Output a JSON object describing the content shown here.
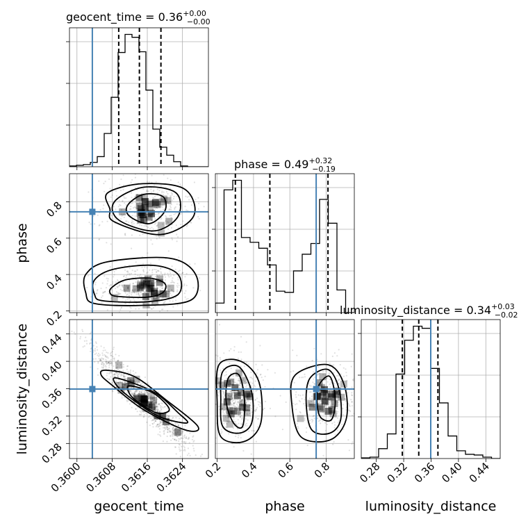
{
  "chart_data": {
    "type": "corner",
    "parameters": [
      "geocent_time",
      "phase",
      "luminosity_distance"
    ],
    "truth_color": "#4682b4",
    "grid": true,
    "ranges": {
      "geocent_time": [
        0.35983,
        0.36299
      ],
      "phase": [
        0.19,
        0.955
      ],
      "luminosity_distance": [
        0.258,
        0.461
      ]
    },
    "titles": [
      {
        "param": "geocent_time",
        "label": "geocent_time = 0.36",
        "plus": "+0.00",
        "minus": "−0.00"
      },
      {
        "param": "phase",
        "label": "phase = 0.49",
        "plus": "+0.32",
        "minus": "−0.19"
      },
      {
        "param": "luminosity_distance",
        "label": "luminosity_distance = 0.34",
        "plus": "+0.03",
        "minus": "−0.02"
      }
    ],
    "truths": {
      "geocent_time": 0.36035,
      "phase": 0.745,
      "luminosity_distance": 0.3595
    },
    "quantiles": {
      "geocent_time": [
        0.36095,
        0.36142,
        0.36191
      ],
      "phase": [
        0.3,
        0.49,
        0.81
      ],
      "luminosity_distance": [
        0.318,
        0.342,
        0.37
      ]
    },
    "ticks": {
      "geocent_time": [
        "0.3600",
        "0.3608",
        "0.3616",
        "0.3624"
      ],
      "geocent_time_values": [
        0.36,
        0.3608,
        0.3616,
        0.3624
      ],
      "phase_x": [
        "0.2",
        "0.4",
        "0.6",
        "0.8"
      ],
      "phase_x_values": [
        0.2,
        0.4,
        0.6,
        0.8
      ],
      "phase_y": [
        "0.2",
        "0.4",
        "0.6",
        "0.8"
      ],
      "phase_y_values": [
        0.2,
        0.4,
        0.6,
        0.8
      ],
      "luminosity_distance": [
        "0.28",
        "0.32",
        "0.36",
        "0.40",
        "0.44"
      ],
      "luminosity_distance_values": [
        0.28,
        0.32,
        0.36,
        0.4,
        0.44
      ]
    },
    "hist_geocent_time": {
      "edges_start": 0.35983,
      "edges_end": 0.36299,
      "counts": [
        1,
        2,
        3,
        6,
        14,
        46,
        96,
        158,
        183,
        179,
        159,
        106,
        52,
        27,
        16,
        7,
        1,
        0,
        0,
        0
      ]
    },
    "hist_phase": {
      "edges_start": 0.19,
      "edges_end": 0.955,
      "counts": [
        8,
        103,
        111,
        63,
        59,
        54,
        40,
        18,
        17,
        35,
        49,
        58,
        95,
        75,
        19,
        0
      ]
    },
    "hist_luminosity_distance": {
      "edges_start": 0.258,
      "edges_end": 0.461,
      "counts": [
        1,
        2,
        14,
        35,
        120,
        168,
        188,
        185,
        128,
        79,
        32,
        11,
        6,
        5,
        2,
        0
      ]
    },
    "scatter_phase_vs_geocent_time": {
      "modes": [
        {
          "x": 0.36155,
          "y": 0.325,
          "sx": 0.00035,
          "sy": 0.045,
          "weight": 0.55
        },
        {
          "x": 0.3616,
          "y": 0.765,
          "sx": 0.00035,
          "sy": 0.06,
          "weight": 0.45
        }
      ],
      "contours": [
        {
          "x": [
            0.3609,
            0.3616,
            0.36195,
            0.362,
            0.36165,
            0.3611,
            0.3608,
            0.36075
          ],
          "y": [
            0.28,
            0.275,
            0.3,
            0.35,
            0.38,
            0.37,
            0.33,
            0.3
          ]
        },
        {
          "x": [
            0.3606,
            0.3616,
            0.3623,
            0.3623,
            0.36175,
            0.36085,
            0.3604,
            0.3604
          ],
          "y": [
            0.255,
            0.25,
            0.29,
            0.4,
            0.45,
            0.43,
            0.37,
            0.29
          ]
        },
        {
          "x": [
            0.3604,
            0.3615,
            0.3626,
            0.3627,
            0.3621,
            0.3607,
            0.3602,
            0.3602
          ],
          "y": [
            0.24,
            0.23,
            0.26,
            0.4,
            0.49,
            0.47,
            0.4,
            0.3
          ]
        },
        {
          "x": [
            0.3612,
            0.36165,
            0.362,
            0.36195,
            0.3615,
            0.36115
          ],
          "y": [
            0.72,
            0.68,
            0.75,
            0.83,
            0.84,
            0.78
          ]
        },
        {
          "x": [
            0.36095,
            0.36175,
            0.3623,
            0.36225,
            0.3615,
            0.36085
          ],
          "y": [
            0.7,
            0.64,
            0.72,
            0.85,
            0.88,
            0.8
          ]
        },
        {
          "x": [
            0.36085,
            0.3619,
            0.36265,
            0.36245,
            0.3615,
            0.3607,
            0.36075
          ],
          "y": [
            0.69,
            0.62,
            0.72,
            0.87,
            0.9,
            0.85,
            0.76
          ]
        }
      ]
    },
    "scatter_luminosity_distance_vs_geocent_time": {
      "modes": [
        {
          "x": 0.3615,
          "y": 0.345,
          "sx": 0.00045,
          "sy": 0.03,
          "corr": -0.95,
          "weight": 1.0
        }
      ],
      "contours": [
        {
          "x": [
            0.36125,
            0.36175,
            0.3621,
            0.3618,
            0.3613,
            0.36115
          ],
          "y": [
            0.364,
            0.353,
            0.33,
            0.325,
            0.345,
            0.36
          ]
        },
        {
          "x": [
            0.36095,
            0.36175,
            0.3623,
            0.3625,
            0.36185,
            0.36115,
            0.36085
          ],
          "y": [
            0.375,
            0.355,
            0.325,
            0.31,
            0.32,
            0.35,
            0.37
          ]
        },
        {
          "x": [
            0.36065,
            0.3613,
            0.362,
            0.36275,
            0.36245,
            0.3615,
            0.3608,
            0.36055
          ],
          "y": [
            0.387,
            0.378,
            0.345,
            0.305,
            0.3,
            0.33,
            0.365,
            0.38
          ]
        }
      ]
    },
    "scatter_luminosity_distance_vs_phase": {
      "modes": [
        {
          "x": 0.3,
          "y": 0.345,
          "sx": 0.05,
          "sy": 0.02,
          "weight": 0.58
        },
        {
          "x": 0.8,
          "y": 0.345,
          "sx": 0.06,
          "sy": 0.02,
          "weight": 0.42
        }
      ],
      "contours": [
        {
          "x": [
            0.26,
            0.32,
            0.35,
            0.34,
            0.29,
            0.25
          ],
          "y": [
            0.375,
            0.38,
            0.345,
            0.305,
            0.31,
            0.34
          ]
        },
        {
          "x": [
            0.23,
            0.32,
            0.39,
            0.39,
            0.32,
            0.23,
            0.22
          ],
          "y": [
            0.385,
            0.392,
            0.355,
            0.31,
            0.295,
            0.305,
            0.345
          ]
        },
        {
          "x": [
            0.21,
            0.33,
            0.43,
            0.44,
            0.35,
            0.22,
            0.2
          ],
          "y": [
            0.395,
            0.4,
            0.37,
            0.31,
            0.283,
            0.29,
            0.34
          ]
        },
        {
          "x": [
            0.76,
            0.82,
            0.85,
            0.83,
            0.77,
            0.75
          ],
          "y": [
            0.365,
            0.378,
            0.345,
            0.315,
            0.318,
            0.34
          ]
        },
        {
          "x": [
            0.71,
            0.81,
            0.87,
            0.88,
            0.82,
            0.72,
            0.69
          ],
          "y": [
            0.375,
            0.388,
            0.36,
            0.315,
            0.295,
            0.3,
            0.34
          ]
        },
        {
          "x": [
            0.63,
            0.81,
            0.9,
            0.91,
            0.82,
            0.66,
            0.61
          ],
          "y": [
            0.38,
            0.395,
            0.365,
            0.315,
            0.285,
            0.29,
            0.34
          ]
        }
      ]
    }
  }
}
